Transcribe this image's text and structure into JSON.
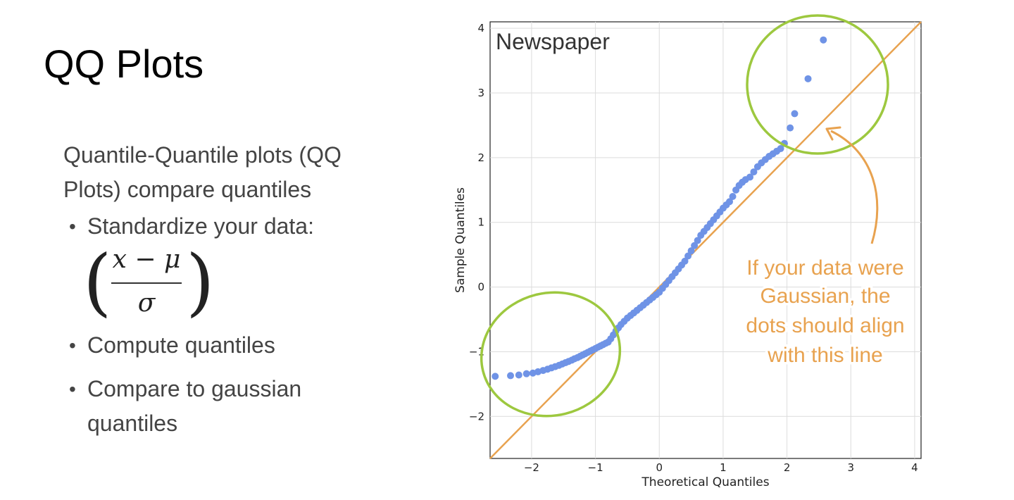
{
  "slide": {
    "title": "QQ Plots",
    "intro": "Quantile-Quantile plots (QQ Plots) compare quantiles",
    "bullets": [
      "Standardize your data:",
      "Compute quantiles",
      "Compare to gaussian quantiles"
    ],
    "bullet_glyph": "•",
    "formula": {
      "open_paren": "(",
      "numerator": "x − μ",
      "denominator": "σ",
      "close_paren": ")"
    }
  },
  "chart_data": {
    "type": "scatter",
    "title": "Newspaper",
    "xlabel": "Theoretical Quantiles",
    "ylabel": "Sample Quantiles",
    "xlim": [
      -2.65,
      4.1
    ],
    "ylim": [
      -2.65,
      4.1
    ],
    "xticks": [
      -2,
      -1,
      0,
      1,
      2,
      3,
      4
    ],
    "yticks": [
      -2,
      -1,
      0,
      1,
      2,
      3,
      4
    ],
    "xtick_labels": [
      "−2",
      "−1",
      "0",
      "1",
      "2",
      "3",
      "4"
    ],
    "ytick_labels": [
      "−2",
      "−1",
      "0",
      "1",
      "2",
      "3",
      "4"
    ],
    "grid": true,
    "reference_line": {
      "slope": 1,
      "intercept": 0,
      "color": "#e8a24f"
    },
    "point_color": "#6f93e6",
    "x": [
      -2.57,
      -2.33,
      -2.2,
      -2.08,
      -1.98,
      -1.9,
      -1.82,
      -1.75,
      -1.69,
      -1.63,
      -1.57,
      -1.52,
      -1.47,
      -1.42,
      -1.37,
      -1.33,
      -1.28,
      -1.24,
      -1.2,
      -1.16,
      -1.12,
      -1.08,
      -1.04,
      -1.0,
      -0.96,
      -0.92,
      -0.88,
      -0.84,
      -0.8,
      -0.76,
      -0.72,
      -0.68,
      -0.64,
      -0.6,
      -0.55,
      -0.5,
      -0.45,
      -0.4,
      -0.35,
      -0.3,
      -0.25,
      -0.2,
      -0.15,
      -0.1,
      -0.05,
      0.0,
      0.05,
      0.1,
      0.15,
      0.2,
      0.25,
      0.3,
      0.35,
      0.4,
      0.45,
      0.5,
      0.55,
      0.6,
      0.65,
      0.7,
      0.75,
      0.8,
      0.85,
      0.9,
      0.95,
      1.0,
      1.05,
      1.1,
      1.15,
      1.2,
      1.25,
      1.3,
      1.35,
      1.42,
      1.48,
      1.54,
      1.6,
      1.66,
      1.72,
      1.78,
      1.84,
      1.9,
      1.96,
      2.05,
      2.12,
      2.33,
      2.57
    ],
    "y": [
      -1.38,
      -1.37,
      -1.36,
      -1.34,
      -1.33,
      -1.31,
      -1.29,
      -1.27,
      -1.25,
      -1.23,
      -1.21,
      -1.19,
      -1.17,
      -1.15,
      -1.13,
      -1.11,
      -1.09,
      -1.07,
      -1.05,
      -1.03,
      -1.01,
      -0.99,
      -0.97,
      -0.95,
      -0.93,
      -0.91,
      -0.89,
      -0.87,
      -0.85,
      -0.8,
      -0.74,
      -0.68,
      -0.63,
      -0.58,
      -0.53,
      -0.48,
      -0.44,
      -0.4,
      -0.36,
      -0.32,
      -0.28,
      -0.24,
      -0.2,
      -0.16,
      -0.12,
      -0.08,
      -0.02,
      0.04,
      0.1,
      0.16,
      0.22,
      0.28,
      0.34,
      0.4,
      0.48,
      0.56,
      0.64,
      0.72,
      0.8,
      0.86,
      0.92,
      0.98,
      1.04,
      1.1,
      1.16,
      1.22,
      1.27,
      1.32,
      1.4,
      1.5,
      1.57,
      1.62,
      1.66,
      1.7,
      1.78,
      1.86,
      1.92,
      1.97,
      2.02,
      2.06,
      2.1,
      2.14,
      2.22,
      2.46,
      2.68,
      3.22,
      3.82
    ]
  },
  "annotations": {
    "callout_lines": [
      "If your data were",
      "Gaussian, the",
      "dots should align",
      "with this line"
    ],
    "callout_color": "#e8a24f",
    "highlight_color": "#9dc83f"
  }
}
